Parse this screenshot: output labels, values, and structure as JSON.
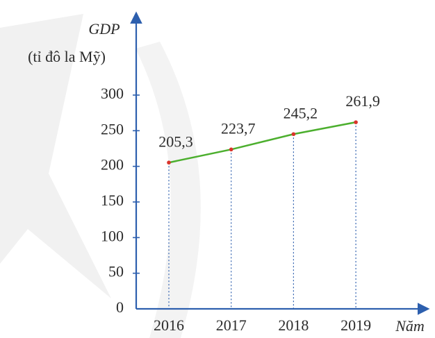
{
  "chart_data": {
    "type": "line",
    "y_label": "GDP",
    "y_unit": "(tỉ đô la Mỹ)",
    "x_label": "Năm",
    "categories": [
      "2016",
      "2017",
      "2018",
      "2019"
    ],
    "values": [
      205.3,
      223.7,
      245.2,
      261.9
    ],
    "value_labels": [
      "205,3",
      "223,7",
      "245,2",
      "261,9"
    ],
    "color": "#4caf2e",
    "marker_color": "#d9342b",
    "ylim": [
      0,
      300
    ],
    "yticks": [
      0,
      50,
      100,
      150,
      200,
      250,
      300
    ]
  }
}
